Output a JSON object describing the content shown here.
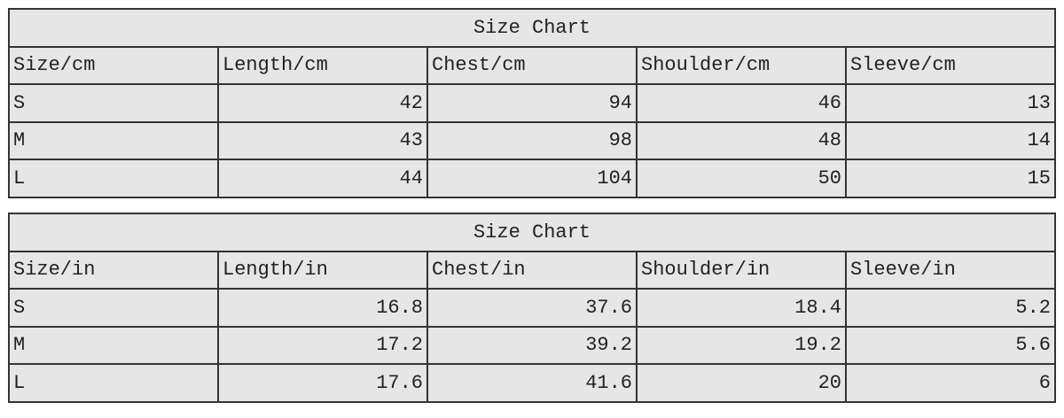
{
  "tables": [
    {
      "title": "Size Chart",
      "headers": [
        "Size/cm",
        "Length/cm",
        "Chest/cm",
        "Shoulder/cm",
        "Sleeve/cm"
      ],
      "rows": [
        [
          "S",
          "42",
          "94",
          "46",
          "13"
        ],
        [
          "M",
          "43",
          "98",
          "48",
          "14"
        ],
        [
          "L",
          "44",
          "104",
          "50",
          "15"
        ]
      ]
    },
    {
      "title": "Size Chart",
      "headers": [
        "Size/in",
        "Length/in",
        "Chest/in",
        "Shoulder/in",
        "Sleeve/in"
      ],
      "rows": [
        [
          "S",
          "16.8",
          "37.6",
          "18.4",
          "5.2"
        ],
        [
          "M",
          "17.2",
          "39.2",
          "19.2",
          "5.6"
        ],
        [
          "L",
          "17.6",
          "41.6",
          "20",
          "6"
        ]
      ]
    }
  ],
  "colors": {
    "cell_background": "#e6e6e6",
    "border": "#333333"
  }
}
